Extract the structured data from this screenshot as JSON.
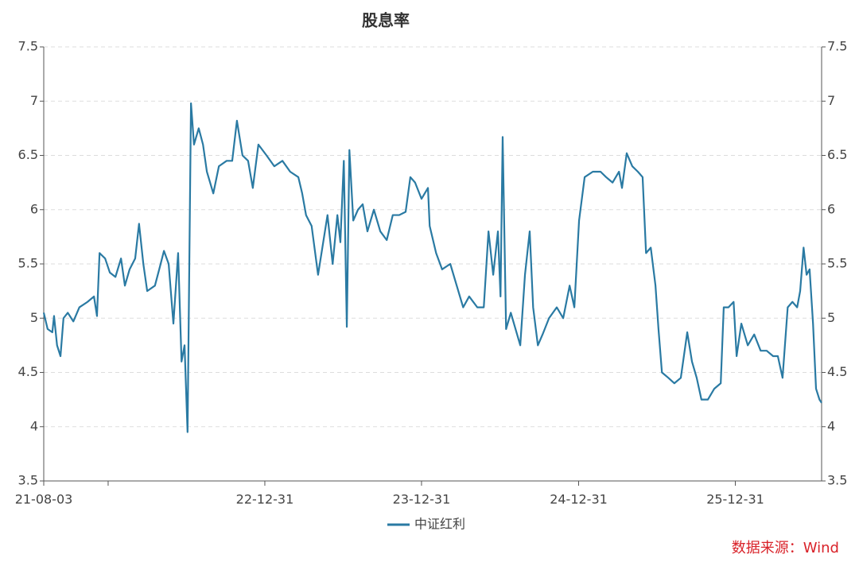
{
  "chart_data": {
    "type": "line",
    "title": "股息率",
    "x": [
      "21-08-03",
      "21-08-12",
      "21-08-23",
      "21-08-27",
      "21-09-03",
      "21-09-11",
      "21-09-18",
      "21-09-28",
      "21-10-11",
      "21-10-25",
      "21-11-13",
      "21-11-28",
      "21-12-05",
      "21-12-11",
      "21-12-24",
      "22-01-04",
      "22-01-17",
      "22-01-30",
      "22-02-08",
      "22-02-19",
      "22-03-04",
      "22-03-13",
      "22-03-23",
      "22-04-01",
      "22-04-19",
      "22-04-29",
      "22-05-10",
      "22-05-21",
      "22-06-01",
      "22-06-12",
      "22-06-20",
      "22-06-27",
      "22-07-04",
      "22-07-12",
      "22-07-19",
      "22-07-30",
      "22-08-09",
      "22-08-18",
      "22-09-02",
      "22-09-15",
      "22-10-03",
      "22-10-16",
      "22-10-27",
      "22-11-09",
      "22-11-22",
      "22-12-03",
      "22-12-16",
      "23-01-04",
      "23-01-22",
      "23-02-10",
      "23-02-28",
      "23-03-19",
      "23-03-28",
      "23-04-06",
      "23-04-19",
      "23-05-04",
      "23-05-14",
      "23-05-26",
      "23-06-07",
      "23-06-18",
      "23-06-25",
      "23-07-03",
      "23-07-10",
      "23-07-16",
      "23-07-25",
      "23-08-05",
      "23-08-16",
      "23-08-27",
      "23-09-11",
      "23-09-26",
      "23-10-11",
      "23-10-25",
      "23-11-09",
      "23-11-24",
      "23-12-05",
      "23-12-16",
      "23-12-31",
      "24-01-15",
      "24-01-19",
      "24-02-03",
      "24-02-17",
      "24-03-07",
      "24-03-22",
      "24-04-06",
      "24-04-20",
      "24-05-09",
      "24-05-24",
      "24-06-04",
      "24-06-15",
      "24-06-26",
      "24-07-02",
      "24-07-07",
      "24-07-15",
      "24-07-26",
      "24-08-06",
      "24-08-17",
      "24-08-28",
      "24-09-08",
      "24-09-16",
      "24-09-27",
      "24-10-08",
      "24-10-23",
      "24-11-10",
      "24-11-25",
      "24-12-10",
      "24-12-21",
      "25-01-01",
      "25-01-14",
      "25-02-02",
      "25-02-20",
      "25-03-05",
      "25-03-20",
      "25-04-04",
      "25-04-11",
      "25-04-22",
      "25-05-05",
      "25-05-18",
      "25-05-29",
      "25-06-06",
      "25-06-17",
      "25-06-28",
      "25-07-05",
      "25-07-13",
      "25-07-28",
      "25-08-11",
      "25-08-26",
      "25-09-10",
      "25-09-21",
      "25-10-02",
      "25-10-13",
      "25-10-28",
      "25-11-12",
      "25-11-27",
      "25-12-04",
      "25-12-15",
      "25-12-27",
      "26-01-03",
      "26-01-14",
      "26-01-29",
      "26-02-13",
      "26-02-28",
      "26-03-14",
      "26-03-29",
      "26-04-09",
      "26-04-20",
      "26-05-02",
      "26-05-13",
      "26-05-24",
      "26-05-31",
      "26-06-08",
      "26-06-15",
      "26-06-22",
      "26-06-30",
      "26-07-07",
      "26-07-15",
      "26-07-20"
    ],
    "series": [
      {
        "name": "中证红利",
        "color": "#2a7aa3",
        "values": [
          5.05,
          4.9,
          4.87,
          5.02,
          4.75,
          4.65,
          5.0,
          5.05,
          4.97,
          5.1,
          5.15,
          5.2,
          5.02,
          5.6,
          5.55,
          5.42,
          5.38,
          5.55,
          5.3,
          5.45,
          5.55,
          5.87,
          5.5,
          5.25,
          5.3,
          5.45,
          5.62,
          5.5,
          4.95,
          5.6,
          4.6,
          4.75,
          3.95,
          6.98,
          6.6,
          6.75,
          6.6,
          6.35,
          6.15,
          6.4,
          6.45,
          6.45,
          6.82,
          6.5,
          6.45,
          6.2,
          6.6,
          6.5,
          6.4,
          6.45,
          6.35,
          6.3,
          6.15,
          5.95,
          5.85,
          5.4,
          5.65,
          5.95,
          5.5,
          5.95,
          5.7,
          6.45,
          4.92,
          6.55,
          5.9,
          6.0,
          6.05,
          5.8,
          6.0,
          5.8,
          5.72,
          5.95,
          5.95,
          5.98,
          6.3,
          6.25,
          6.1,
          6.2,
          5.85,
          5.6,
          5.45,
          5.5,
          5.3,
          5.1,
          5.2,
          5.1,
          5.1,
          5.8,
          5.4,
          5.8,
          5.2,
          6.67,
          4.9,
          5.05,
          4.9,
          4.75,
          5.4,
          5.8,
          5.1,
          4.75,
          4.85,
          5.0,
          5.1,
          5.0,
          5.3,
          5.1,
          5.9,
          6.3,
          6.35,
          6.35,
          6.3,
          6.25,
          6.35,
          6.2,
          6.52,
          6.4,
          6.35,
          6.3,
          5.6,
          5.65,
          5.3,
          4.9,
          4.5,
          4.45,
          4.4,
          4.45,
          4.87,
          4.6,
          4.45,
          4.25,
          4.25,
          4.35,
          4.4,
          5.1,
          5.1,
          5.15,
          4.65,
          4.95,
          4.75,
          4.85,
          4.7,
          4.7,
          4.65,
          4.65,
          4.45,
          5.1,
          5.15,
          5.1,
          5.25,
          5.65,
          5.4,
          5.45,
          4.95,
          4.35,
          4.25,
          4.22
        ]
      }
    ],
    "xlim": [
      "21-08-03",
      "26-07-20"
    ],
    "xticks": [
      "21-08-03",
      {
        "value": "21-12-31",
        "label": null
      },
      "22-12-31",
      "23-12-31",
      "24-12-31",
      "25-12-31"
    ],
    "ylim": [
      3.5,
      7.5
    ],
    "yticks": [
      3.5,
      4,
      4.5,
      5,
      5.5,
      6,
      6.5,
      7,
      7.5
    ],
    "y2lim": [
      3.5,
      7.5
    ],
    "y2ticks": [
      3.5,
      4,
      4.5,
      5,
      5.5,
      6,
      6.5,
      7,
      7.5
    ],
    "grid": true,
    "legend": "bottom",
    "source": "数据来源：Wind"
  }
}
